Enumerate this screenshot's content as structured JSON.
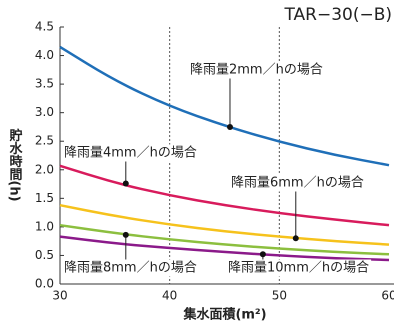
{
  "chart_data": {
    "type": "line",
    "title": "TAR−30(−B)",
    "xlabel": "集水面積(m²)",
    "ylabel": "貯水時間(h)",
    "x": [
      30,
      35,
      40,
      45,
      50,
      55,
      60
    ],
    "series": [
      {
        "name": "降雨量2mm／hの場合",
        "color": "#1f6fb8",
        "values": [
          4.15,
          3.56,
          3.11,
          2.77,
          2.49,
          2.26,
          2.08
        ]
      },
      {
        "name": "降雨量4mm／hの場合",
        "color": "#d81b5c",
        "values": [
          2.07,
          1.77,
          1.55,
          1.38,
          1.24,
          1.13,
          1.03
        ]
      },
      {
        "name": "降雨量6mm／hの場合",
        "color": "#f6c21c",
        "values": [
          1.38,
          1.19,
          1.04,
          0.92,
          0.83,
          0.75,
          0.69
        ]
      },
      {
        "name": "降雨量8mm／hの場合",
        "color": "#8cbf3f",
        "values": [
          1.03,
          0.89,
          0.78,
          0.69,
          0.62,
          0.56,
          0.52
        ]
      },
      {
        "name": "降雨量10mm／hの場合",
        "color": "#8b1a8a",
        "values": [
          0.83,
          0.71,
          0.63,
          0.56,
          0.5,
          0.45,
          0.42
        ]
      }
    ],
    "markers": [
      {
        "x": 45.5,
        "y": 2.75
      },
      {
        "x": 36,
        "y": 1.76
      },
      {
        "x": 51.5,
        "y": 0.8
      },
      {
        "x": 36,
        "y": 0.86
      },
      {
        "x": 48.5,
        "y": 0.52
      }
    ],
    "xlim": [
      30,
      60
    ],
    "ylim": [
      0,
      4.5
    ],
    "xticks": [
      30,
      40,
      50,
      60
    ],
    "yticks": [
      {
        "value": 0,
        "label": "0.0"
      },
      {
        "value": 0.5,
        "label": "0.5"
      },
      {
        "value": 1,
        "label": "1.0"
      },
      {
        "value": 1.5,
        "label": "1.5"
      },
      {
        "value": 2,
        "label": "2.0"
      },
      {
        "value": 2.5,
        "label": "2.5"
      },
      {
        "value": 3,
        "label": "3.0"
      },
      {
        "value": 3.5,
        "label": "3.5"
      },
      {
        "value": 4,
        "label": "4.0"
      },
      {
        "value": 4.5,
        "label": "4.5"
      }
    ],
    "grid": true
  }
}
